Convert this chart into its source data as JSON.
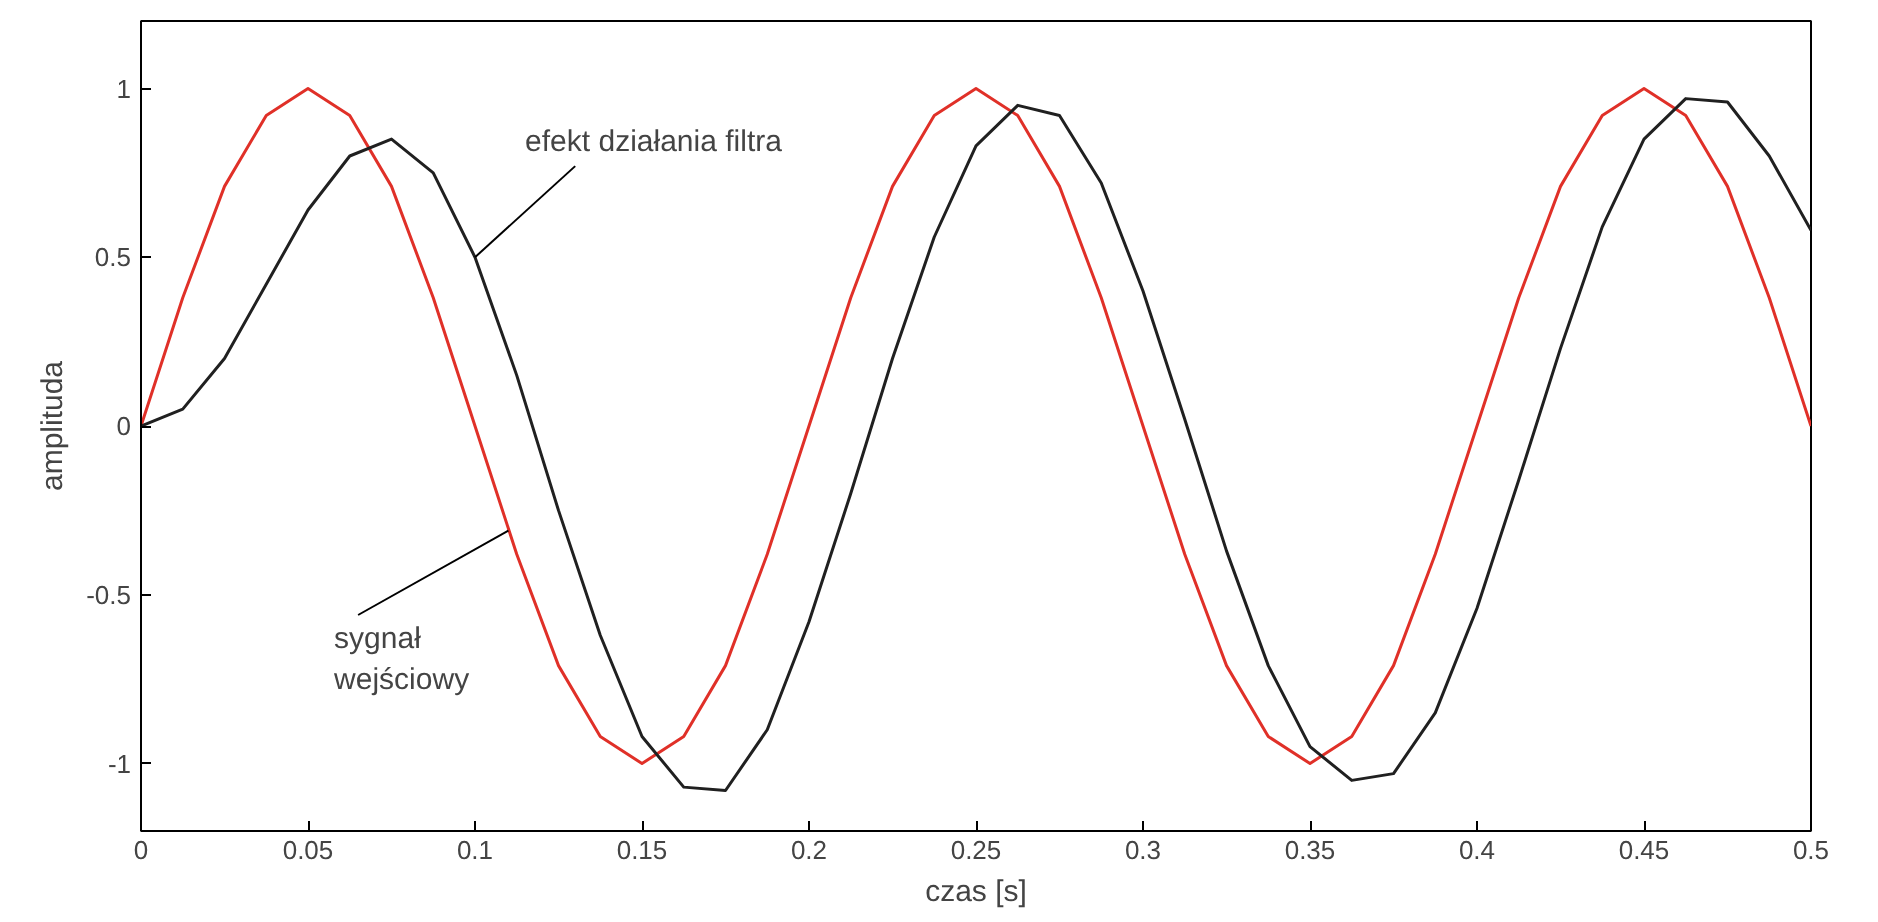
{
  "chart_data": {
    "type": "line",
    "xlabel": "czas [s]",
    "ylabel": "amplituda",
    "x": [
      0,
      0.0125,
      0.025,
      0.0375,
      0.05,
      0.0625,
      0.075,
      0.0875,
      0.1,
      0.1125,
      0.125,
      0.1375,
      0.15,
      0.1625,
      0.175,
      0.1875,
      0.2,
      0.2125,
      0.225,
      0.2375,
      0.25,
      0.2625,
      0.275,
      0.2875,
      0.3,
      0.3125,
      0.325,
      0.3375,
      0.35,
      0.3625,
      0.375,
      0.3875,
      0.4,
      0.4125,
      0.425,
      0.4375,
      0.45,
      0.4625,
      0.475,
      0.4875,
      0.5
    ],
    "series": [
      {
        "color": "#e03028",
        "values": [
          0,
          0.38,
          0.71,
          0.92,
          1,
          0.92,
          0.71,
          0.38,
          0,
          -0.38,
          -0.71,
          -0.92,
          -1,
          -0.92,
          -0.71,
          -0.38,
          0,
          0.38,
          0.71,
          0.92,
          1,
          0.92,
          0.71,
          0.38,
          0,
          -0.38,
          -0.71,
          -0.92,
          -1,
          -0.92,
          -0.71,
          -0.38,
          0,
          0.38,
          0.71,
          0.92,
          1,
          0.92,
          0.71,
          0.38,
          0
        ]
      },
      {
        "color": "#202020",
        "values": [
          0,
          0.05,
          0.2,
          0.42,
          0.64,
          0.8,
          0.85,
          0.75,
          0.5,
          0.15,
          -0.25,
          -0.62,
          -0.92,
          -1.07,
          -1.08,
          -0.9,
          -0.58,
          -0.2,
          0.2,
          0.56,
          0.83,
          0.95,
          0.92,
          0.72,
          0.4,
          0.02,
          -0.37,
          -0.71,
          -0.95,
          -1.05,
          -1.03,
          -0.85,
          -0.54,
          -0.16,
          0.23,
          0.59,
          0.85,
          0.97,
          0.96,
          0.8,
          0.58
        ]
      }
    ],
    "xlim": [
      0,
      0.5
    ],
    "ylim": [
      -1.2,
      1.2
    ],
    "xticks": [
      0,
      0.05,
      0.1,
      0.15,
      0.2,
      0.25,
      0.3,
      0.35,
      0.4,
      0.45,
      0.5
    ],
    "yticks": [
      -1,
      -0.5,
      0,
      0.5,
      1
    ],
    "annotations": [
      {
        "text": "efekt działania filtra",
        "x": 0.1,
        "y": 0.5
      },
      {
        "text": "sygnał\nwejściowy",
        "x": 0.11,
        "y": -0.31
      }
    ],
    "grid": false,
    "line_style": "solid"
  }
}
